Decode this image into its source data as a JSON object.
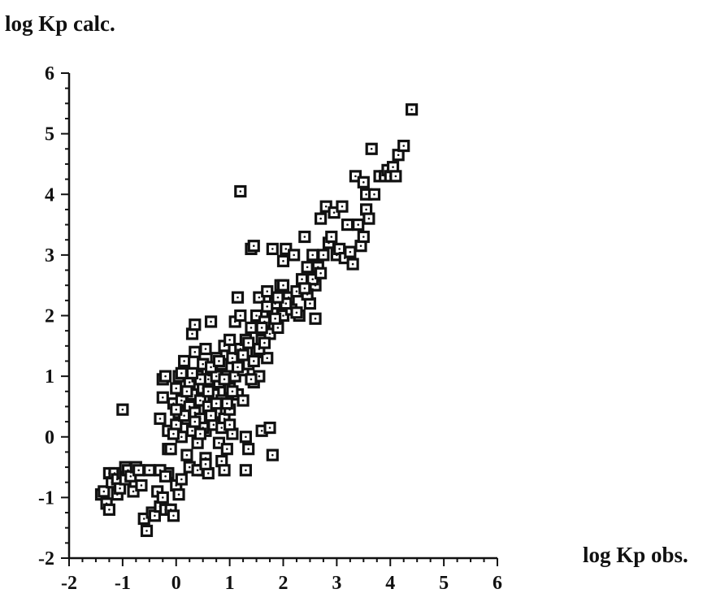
{
  "chart_data": {
    "type": "scatter",
    "ylabel": "log Kp calc.",
    "xlabel": "log Kp obs.",
    "xlim": [
      -2,
      6
    ],
    "ylim": [
      -2,
      6
    ],
    "xticks": [
      "-2",
      "-1",
      "0",
      "1",
      "2",
      "3",
      "4",
      "5",
      "6"
    ],
    "yticks": [
      "-2",
      "-1",
      "0",
      "1",
      "2",
      "3",
      "4",
      "5",
      "6"
    ],
    "grid": false,
    "marker": "open square with dot",
    "series": [
      {
        "points": [
          [
            -1.4,
            -0.95
          ],
          [
            -1.35,
            -0.9
          ],
          [
            -1.3,
            -1.1
          ],
          [
            -1.25,
            -1.2
          ],
          [
            -1.25,
            -0.6
          ],
          [
            -1.2,
            -0.75
          ],
          [
            -1.15,
            -0.6
          ],
          [
            -1.1,
            -0.95
          ],
          [
            -1.1,
            -0.7
          ],
          [
            -1.05,
            -0.85
          ],
          [
            -1.0,
            -0.6
          ],
          [
            -0.95,
            -0.7
          ],
          [
            -0.95,
            -0.5
          ],
          [
            -0.9,
            -0.55
          ],
          [
            -0.85,
            -0.65
          ],
          [
            -0.8,
            -0.9
          ],
          [
            -0.75,
            -0.5
          ],
          [
            -0.7,
            -0.55
          ],
          [
            -0.65,
            -0.8
          ],
          [
            -0.6,
            -1.35
          ],
          [
            -0.55,
            -1.55
          ],
          [
            -0.5,
            -0.55
          ],
          [
            -0.45,
            -1.25
          ],
          [
            -0.4,
            -1.3
          ],
          [
            -0.35,
            -0.9
          ],
          [
            -0.3,
            -1.15
          ],
          [
            -0.25,
            -1.0
          ],
          [
            -0.2,
            -1.2
          ],
          [
            -0.15,
            -0.6
          ],
          [
            -0.1,
            -1.2
          ],
          [
            -0.05,
            -1.3
          ],
          [
            0.0,
            -0.8
          ],
          [
            0.05,
            -0.95
          ],
          [
            0.1,
            -0.7
          ],
          [
            -1.0,
            0.45
          ],
          [
            -0.3,
            0.3
          ],
          [
            -0.25,
            0.65
          ],
          [
            -0.25,
            0.95
          ],
          [
            -0.2,
            1.0
          ],
          [
            -0.15,
            -0.2
          ],
          [
            -0.15,
            0.1
          ],
          [
            -0.1,
            -0.2
          ],
          [
            -0.05,
            0.55
          ],
          [
            0.0,
            0.2
          ],
          [
            0.0,
            0.8
          ],
          [
            0.05,
            0.4
          ],
          [
            0.05,
            1.0
          ],
          [
            0.1,
            0.0
          ],
          [
            0.1,
            0.6
          ],
          [
            0.15,
            1.25
          ],
          [
            0.2,
            0.3
          ],
          [
            0.2,
            -0.3
          ],
          [
            0.25,
            0.9
          ],
          [
            0.25,
            0.5
          ],
          [
            0.3,
            0.1
          ],
          [
            0.3,
            0.7
          ],
          [
            0.3,
            1.7
          ],
          [
            0.35,
            1.85
          ],
          [
            0.35,
            1.4
          ],
          [
            0.35,
            0.4
          ],
          [
            0.4,
            1.0
          ],
          [
            0.4,
            -0.1
          ],
          [
            0.45,
            0.6
          ],
          [
            0.45,
            0.3
          ],
          [
            0.5,
            1.2
          ],
          [
            0.5,
            0.8
          ],
          [
            0.5,
            -0.55
          ],
          [
            0.55,
            0.1
          ],
          [
            0.55,
            1.45
          ],
          [
            0.55,
            -0.35
          ],
          [
            0.6,
            0.5
          ],
          [
            0.6,
            0.95
          ],
          [
            0.6,
            -0.6
          ],
          [
            0.65,
            1.9
          ],
          [
            0.7,
            0.7
          ],
          [
            0.7,
            1.1
          ],
          [
            0.7,
            0.2
          ],
          [
            0.75,
            1.3
          ],
          [
            0.75,
            0.4
          ],
          [
            0.8,
            0.9
          ],
          [
            0.8,
            -0.1
          ],
          [
            0.85,
            0.6
          ],
          [
            0.85,
            1.2
          ],
          [
            0.9,
            0.3
          ],
          [
            0.9,
            1.5
          ],
          [
            0.95,
            1.0
          ],
          [
            0.95,
            -0.2
          ],
          [
            1.0,
            0.8
          ],
          [
            1.0,
            1.6
          ],
          [
            1.0,
            0.45
          ],
          [
            1.05,
            1.3
          ],
          [
            1.05,
            0.05
          ],
          [
            1.1,
            1.0
          ],
          [
            1.1,
            1.9
          ],
          [
            1.15,
            2.3
          ],
          [
            1.15,
            0.7
          ],
          [
            1.2,
            1.45
          ],
          [
            1.2,
            2.0
          ],
          [
            1.2,
            4.05
          ],
          [
            1.25,
            1.1
          ],
          [
            1.25,
            0.6
          ],
          [
            1.3,
            1.6
          ],
          [
            1.3,
            0.0
          ],
          [
            1.35,
            1.2
          ],
          [
            1.35,
            -0.2
          ],
          [
            1.4,
            1.8
          ],
          [
            1.4,
            3.1
          ],
          [
            1.45,
            3.15
          ],
          [
            1.45,
            0.9
          ],
          [
            1.5,
            1.4
          ],
          [
            1.5,
            2.0
          ],
          [
            1.55,
            1.0
          ],
          [
            1.55,
            2.3
          ],
          [
            1.6,
            1.6
          ],
          [
            1.6,
            0.1
          ],
          [
            1.65,
            1.9
          ],
          [
            1.7,
            2.4
          ],
          [
            1.7,
            1.3
          ],
          [
            1.75,
            1.7
          ],
          [
            1.75,
            0.15
          ],
          [
            1.8,
            2.1
          ],
          [
            1.8,
            3.1
          ],
          [
            1.8,
            -0.3
          ],
          [
            1.85,
            2.2
          ],
          [
            1.9,
            1.8
          ],
          [
            1.95,
            2.5
          ],
          [
            2.0,
            2.0
          ],
          [
            2.0,
            2.9
          ],
          [
            2.05,
            3.1
          ],
          [
            2.1,
            2.3
          ],
          [
            2.15,
            2.1
          ],
          [
            2.2,
            3.0
          ],
          [
            2.25,
            2.4
          ],
          [
            2.3,
            2.0
          ],
          [
            2.35,
            2.6
          ],
          [
            2.4,
            3.3
          ],
          [
            2.45,
            2.8
          ],
          [
            2.5,
            2.2
          ],
          [
            2.55,
            3.0
          ],
          [
            2.6,
            2.5
          ],
          [
            2.65,
            2.8
          ],
          [
            2.7,
            3.6
          ],
          [
            2.75,
            3.0
          ],
          [
            2.8,
            3.8
          ],
          [
            2.85,
            3.2
          ],
          [
            2.9,
            3.3
          ],
          [
            2.95,
            3.7
          ],
          [
            3.0,
            3.0
          ],
          [
            3.05,
            3.1
          ],
          [
            3.1,
            3.8
          ],
          [
            3.15,
            2.95
          ],
          [
            3.2,
            3.5
          ],
          [
            3.25,
            3.05
          ],
          [
            3.3,
            2.85
          ],
          [
            3.35,
            4.3
          ],
          [
            3.4,
            3.5
          ],
          [
            3.45,
            3.15
          ],
          [
            3.5,
            3.3
          ],
          [
            3.5,
            4.2
          ],
          [
            3.55,
            3.75
          ],
          [
            3.55,
            4.0
          ],
          [
            3.6,
            3.6
          ],
          [
            3.65,
            4.75
          ],
          [
            3.7,
            4.0
          ],
          [
            3.8,
            4.3
          ],
          [
            3.9,
            4.3
          ],
          [
            3.95,
            4.4
          ],
          [
            4.0,
            4.3
          ],
          [
            4.05,
            4.45
          ],
          [
            4.1,
            4.3
          ],
          [
            4.15,
            4.65
          ],
          [
            4.25,
            4.8
          ],
          [
            4.4,
            5.4
          ],
          [
            -0.3,
            -0.55
          ],
          [
            -0.2,
            -0.65
          ],
          [
            0.25,
            -0.5
          ],
          [
            0.4,
            -0.55
          ],
          [
            0.55,
            -0.45
          ],
          [
            0.85,
            -0.4
          ],
          [
            0.9,
            -0.55
          ],
          [
            1.3,
            -0.55
          ],
          [
            0.15,
            0.35
          ],
          [
            0.2,
            0.75
          ],
          [
            0.45,
            0.95
          ],
          [
            0.5,
            0.15
          ],
          [
            0.65,
            0.35
          ],
          [
            0.75,
            1.0
          ],
          [
            0.85,
            0.15
          ],
          [
            0.95,
            0.55
          ],
          [
            1.05,
            0.75
          ],
          [
            1.15,
            1.15
          ],
          [
            1.25,
            1.35
          ],
          [
            1.35,
            1.55
          ],
          [
            1.4,
            0.95
          ],
          [
            1.45,
            1.25
          ],
          [
            1.55,
            1.45
          ],
          [
            1.6,
            1.8
          ],
          [
            1.65,
            1.55
          ],
          [
            1.85,
            1.95
          ],
          [
            2.05,
            2.2
          ],
          [
            2.25,
            2.05
          ],
          [
            2.45,
            2.35
          ],
          [
            2.55,
            2.6
          ],
          [
            2.6,
            1.95
          ],
          [
            2.7,
            2.7
          ],
          [
            2.4,
            2.45
          ],
          [
            2.0,
            2.5
          ],
          [
            1.7,
            2.15
          ],
          [
            1.9,
            2.3
          ],
          [
            0.0,
            0.45
          ],
          [
            -0.05,
            0.05
          ],
          [
            0.6,
            0.75
          ],
          [
            0.65,
            1.15
          ],
          [
            0.8,
            1.25
          ],
          [
            0.3,
            1.05
          ],
          [
            0.1,
            1.05
          ],
          [
            0.35,
            0.25
          ],
          [
            0.45,
            0.05
          ],
          [
            0.75,
            0.55
          ],
          [
            1.0,
            0.2
          ],
          [
            0.9,
            0.95
          ]
        ]
      }
    ]
  }
}
